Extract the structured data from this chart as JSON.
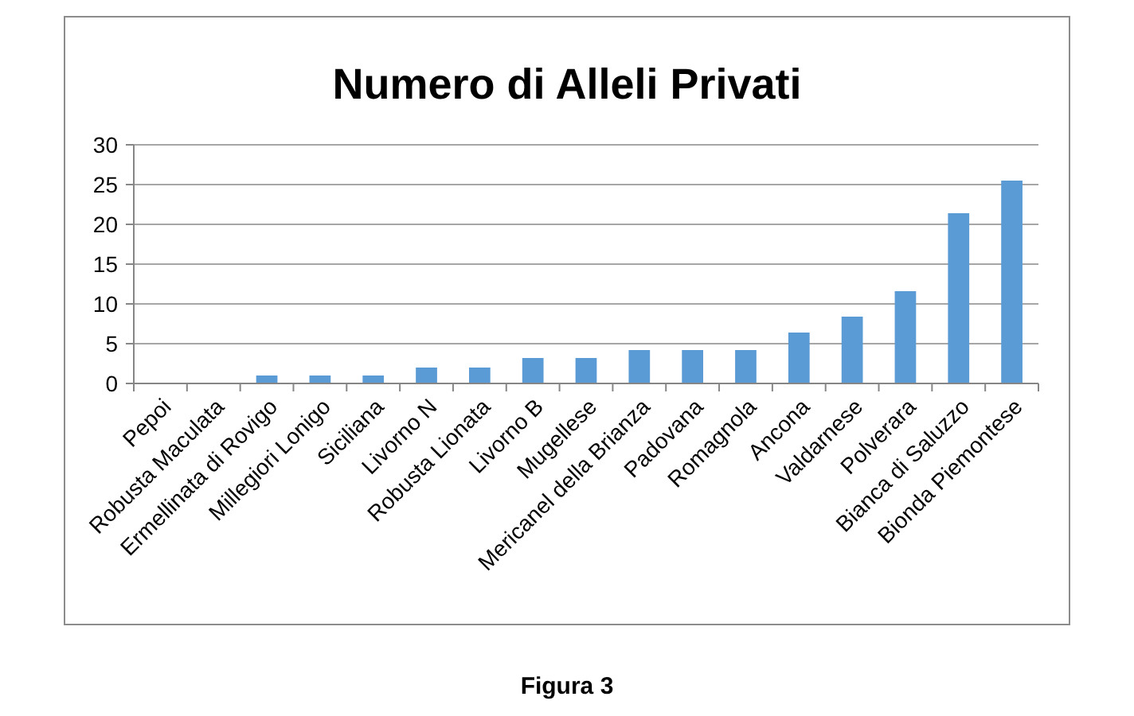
{
  "chart_data": {
    "type": "bar",
    "title": "Numero di Alleli Privati",
    "categories": [
      "Pepoi",
      "Robusta Maculata",
      "Ermellinata di Rovigo",
      "Millegiori Lonigo",
      "Siciliana",
      "Livorno N",
      "Robusta Lionata",
      "Livorno B",
      "Mugellese",
      "Mericanel della Brianza",
      "Padovana",
      "Romagnola",
      "Ancona",
      "Valdarnese",
      "Polverara",
      "Bianca di Saluzzo",
      "Bionda Piemontese"
    ],
    "values": [
      0,
      0,
      1,
      1,
      1,
      2,
      2,
      3.2,
      3.2,
      4.2,
      4.2,
      4.2,
      6.4,
      8.4,
      11.6,
      21.4,
      25.5
    ],
    "color": "#5b9bd5",
    "ylim": [
      0,
      30
    ],
    "yticks": [
      0,
      5,
      10,
      15,
      20,
      25,
      30
    ],
    "grid": "y",
    "annotations": [
      "Figura 3"
    ]
  }
}
